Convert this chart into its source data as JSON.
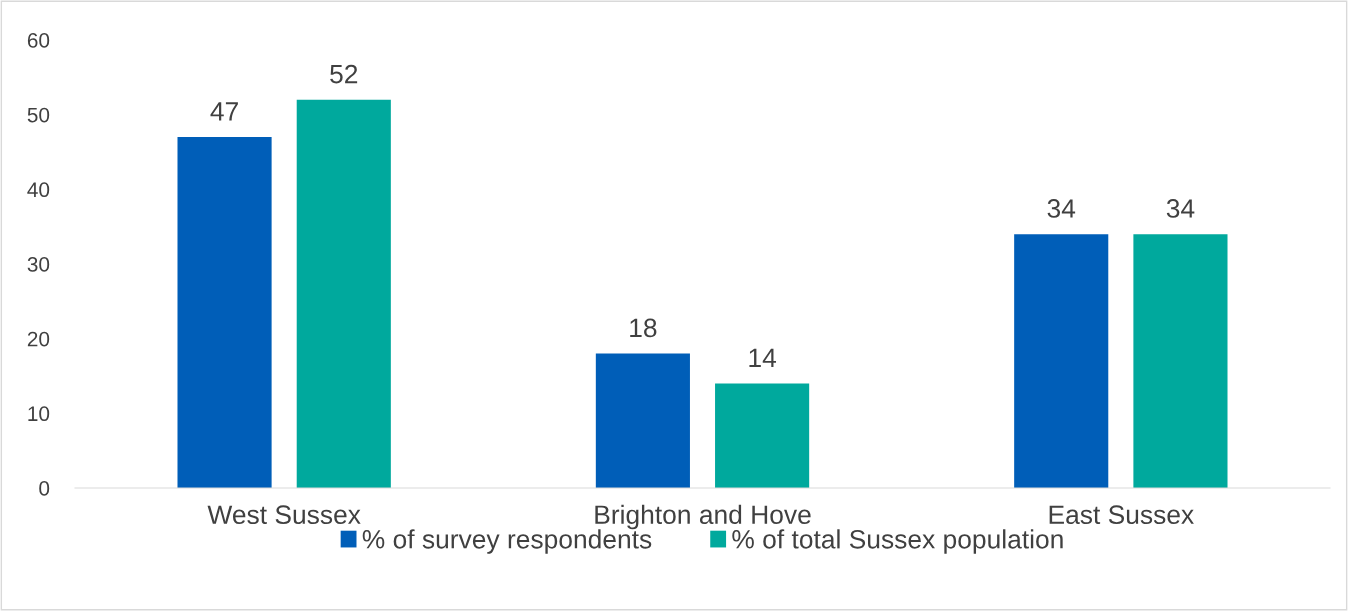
{
  "chart_data": {
    "type": "bar",
    "categories": [
      "West Sussex",
      "Brighton and Hove",
      "East Sussex"
    ],
    "series": [
      {
        "name": "% of survey respondents",
        "color": "#005eb8",
        "values": [
          47,
          18,
          34
        ]
      },
      {
        "name": "% of total Sussex population",
        "color": "#00a99d",
        "values": [
          52,
          14,
          34
        ]
      }
    ],
    "ylim": [
      0,
      60
    ],
    "yticks": [
      0,
      10,
      20,
      30,
      40,
      50,
      60
    ],
    "data_labels": true,
    "grid": false,
    "legend": "bottom"
  }
}
